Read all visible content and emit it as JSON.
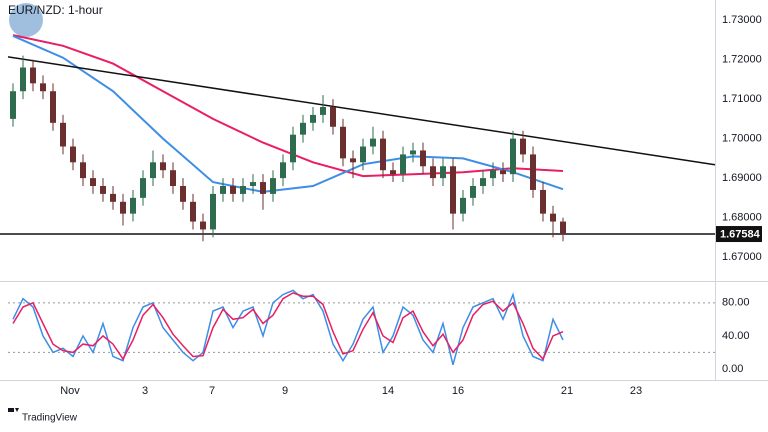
{
  "chart_data": [
    {
      "type": "candlestick",
      "title": "EUR/NZD: 1-hour",
      "xlim": [
        0,
        70.7
      ],
      "xticks": [
        {
          "value": 6.2,
          "label": "Nov"
        },
        {
          "value": 13.7,
          "label": "3"
        },
        {
          "value": 20.4,
          "label": "7"
        },
        {
          "value": 27.7,
          "label": "9"
        },
        {
          "value": 38,
          "label": "14"
        },
        {
          "value": 45,
          "label": "16"
        },
        {
          "value": 55.9,
          "label": "21"
        },
        {
          "value": 62.8,
          "label": "23"
        }
      ],
      "ylim": [
        1.6642,
        1.7351
      ],
      "yticks": [
        {
          "value": 1.73,
          "label": "1.73000"
        },
        {
          "value": 1.72,
          "label": "1.72000"
        },
        {
          "value": 1.71,
          "label": "1.71000"
        },
        {
          "value": 1.7,
          "label": "1.70000"
        },
        {
          "value": 1.69,
          "label": "1.69000"
        },
        {
          "value": 1.68,
          "label": "1.68000"
        },
        {
          "value": 1.67,
          "label": "1.67000"
        }
      ],
      "up_color": "#2f6b4f",
      "down_color": "#6b2f2f",
      "open": [
        1.705,
        1.712,
        1.718,
        1.714,
        1.712,
        1.704,
        1.698,
        1.694,
        1.69,
        1.688,
        1.686,
        1.684,
        1.681,
        1.685,
        1.69,
        1.694,
        1.692,
        1.688,
        1.684,
        1.679,
        1.677,
        1.686,
        1.688,
        1.686,
        1.688,
        1.689,
        1.686,
        1.69,
        1.694,
        1.701,
        1.704,
        1.706,
        1.708,
        1.703,
        1.695,
        1.694,
        1.698,
        1.7,
        1.692,
        1.691,
        1.696,
        1.697,
        1.693,
        1.69,
        1.693,
        1.681,
        1.685,
        1.688,
        1.69,
        1.692,
        1.691,
        1.7,
        1.696,
        1.687,
        1.681,
        1.679
      ],
      "high": [
        1.714,
        1.721,
        1.72,
        1.716,
        1.714,
        1.706,
        1.7,
        1.696,
        1.692,
        1.69,
        1.688,
        1.686,
        1.687,
        1.692,
        1.697,
        1.696,
        1.694,
        1.69,
        1.686,
        1.681,
        1.688,
        1.69,
        1.69,
        1.69,
        1.691,
        1.691,
        1.692,
        1.696,
        1.703,
        1.706,
        1.708,
        1.711,
        1.71,
        1.705,
        1.697,
        1.7,
        1.703,
        1.702,
        1.694,
        1.698,
        1.699,
        1.699,
        1.695,
        1.695,
        1.695,
        1.687,
        1.69,
        1.692,
        1.694,
        1.694,
        1.702,
        1.702,
        1.698,
        1.689,
        1.683,
        1.68
      ],
      "low": [
        1.703,
        1.71,
        1.712,
        1.71,
        1.702,
        1.696,
        1.692,
        1.688,
        1.686,
        1.684,
        1.682,
        1.678,
        1.679,
        1.683,
        1.688,
        1.69,
        1.686,
        1.682,
        1.677,
        1.674,
        1.675,
        1.684,
        1.684,
        1.684,
        1.686,
        1.682,
        1.684,
        1.688,
        1.692,
        1.699,
        1.702,
        1.704,
        1.701,
        1.693,
        1.69,
        1.692,
        1.696,
        1.69,
        1.689,
        1.689,
        1.694,
        1.691,
        1.688,
        1.688,
        1.677,
        1.679,
        1.683,
        1.686,
        1.688,
        1.689,
        1.689,
        1.694,
        1.685,
        1.679,
        1.675,
        1.674
      ],
      "close": [
        1.712,
        1.718,
        1.714,
        1.712,
        1.704,
        1.698,
        1.694,
        1.69,
        1.688,
        1.686,
        1.684,
        1.681,
        1.685,
        1.69,
        1.694,
        1.692,
        1.688,
        1.684,
        1.679,
        1.677,
        1.686,
        1.688,
        1.686,
        1.688,
        1.689,
        1.686,
        1.69,
        1.694,
        1.701,
        1.704,
        1.706,
        1.708,
        1.703,
        1.695,
        1.694,
        1.698,
        1.7,
        1.692,
        1.691,
        1.696,
        1.697,
        1.693,
        1.69,
        1.693,
        1.681,
        1.685,
        1.688,
        1.69,
        1.692,
        1.691,
        1.7,
        1.696,
        1.687,
        1.681,
        1.679,
        1.67584
      ],
      "lines": [
        {
          "color": "#e91e63",
          "x": [
            0.5,
            5.5,
            10.5,
            15.5,
            20.5,
            25.5,
            30.5,
            35.5,
            40.5,
            45.5,
            50.5,
            55.5
          ],
          "values": [
            1.7262,
            1.7235,
            1.719,
            1.712,
            1.705,
            1.699,
            1.694,
            1.6905,
            1.691,
            1.6915,
            1.6925,
            1.6918
          ]
        },
        {
          "color": "#3d8ee6",
          "x": [
            0.5,
            5.5,
            10.5,
            15.5,
            20.5,
            25.5,
            30.5,
            35.5,
            40.5,
            45.5,
            50.5,
            55.5
          ],
          "values": [
            1.726,
            1.7205,
            1.712,
            1.7,
            1.689,
            1.6865,
            1.688,
            1.6935,
            1.6955,
            1.695,
            1.6915,
            1.6872
          ]
        }
      ],
      "trendline": {
        "color": "#111111",
        "x": [
          0,
          70.7
        ],
        "values": [
          1.7207,
          1.6934
        ]
      },
      "support": {
        "color": "#111111",
        "value": 1.67584
      }
    },
    {
      "type": "line",
      "xlim": [
        0,
        70.7
      ],
      "ylim": [
        -11,
        104
      ],
      "yticks": [
        {
          "value": 80,
          "label": "80.00"
        },
        {
          "value": 40,
          "label": "40.00"
        },
        {
          "value": 0,
          "label": "0.00"
        }
      ],
      "levels": [
        80,
        20
      ],
      "series": [
        {
          "color": "#3d8ee6",
          "values": [
            60,
            85,
            75,
            40,
            20,
            25,
            15,
            40,
            20,
            55,
            15,
            10,
            50,
            75,
            80,
            50,
            35,
            20,
            10,
            20,
            70,
            75,
            50,
            70,
            75,
            40,
            80,
            90,
            95,
            85,
            90,
            70,
            30,
            10,
            30,
            60,
            75,
            20,
            40,
            75,
            65,
            35,
            20,
            55,
            5,
            50,
            75,
            80,
            85,
            60,
            90,
            40,
            15,
            10,
            60,
            35
          ]
        },
        {
          "color": "#e91e63",
          "values": [
            55,
            75,
            80,
            55,
            30,
            22,
            20,
            30,
            28,
            40,
            30,
            12,
            35,
            65,
            78,
            62,
            42,
            28,
            15,
            16,
            50,
            72,
            60,
            62,
            72,
            55,
            65,
            85,
            92,
            88,
            88,
            78,
            45,
            18,
            22,
            48,
            68,
            40,
            32,
            62,
            70,
            45,
            28,
            42,
            20,
            35,
            65,
            78,
            82,
            70,
            80,
            55,
            25,
            12,
            40,
            45
          ]
        }
      ]
    }
  ],
  "footer": "TradingView"
}
